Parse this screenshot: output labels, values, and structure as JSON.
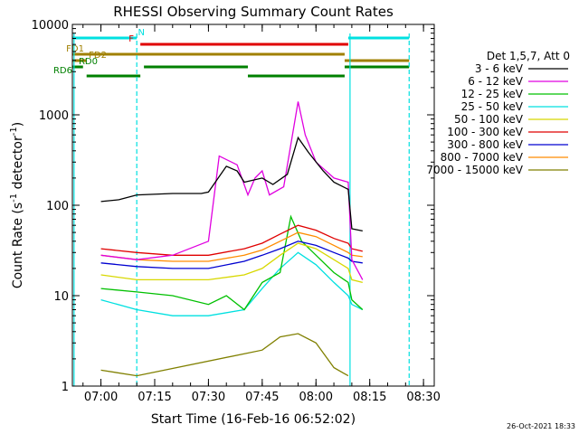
{
  "chart_data": {
    "type": "line",
    "title": "RHESSI Observing Summary Count Rates",
    "xlabel": "Start Time (16-Feb-16 06:52:02)",
    "ylabel_main": "Count Rate (s",
    "ylabel_sup1": "-1",
    "ylabel_mid": " detector",
    "ylabel_sup2": "-1",
    "ylabel_end": ")",
    "y_scale": "log",
    "ylim": [
      1,
      10000
    ],
    "xlim": [
      "06:52:02",
      "08:33:00"
    ],
    "x_ticks": [
      "07:00",
      "07:15",
      "07:30",
      "07:45",
      "08:00",
      "08:15",
      "08:30"
    ],
    "y_ticks": [
      {
        "value": 1,
        "label": "1"
      },
      {
        "value": 10,
        "label": "10"
      },
      {
        "value": 100,
        "label": "100"
      },
      {
        "value": 1000,
        "label": "1000"
      },
      {
        "value": 10000,
        "label": "10000"
      }
    ],
    "legend_placement": "right",
    "legend_title": "Det 1,5,7, Att 0",
    "footer_date": "26-Oct-2021 18:33",
    "series": [
      {
        "name": "3 - 6 keV",
        "color": "#000000",
        "points": [
          [
            "06:52",
            null
          ],
          [
            "06:58",
            null
          ],
          [
            "07:00",
            110
          ],
          [
            "07:05",
            115
          ],
          [
            "07:10",
            130
          ],
          [
            "07:20",
            135
          ],
          [
            "07:28",
            135
          ],
          [
            "07:30",
            140
          ],
          [
            "07:35",
            270
          ],
          [
            "07:38",
            240
          ],
          [
            "07:40",
            180
          ],
          [
            "07:45",
            200
          ],
          [
            "07:48",
            170
          ],
          [
            "07:52",
            220
          ],
          [
            "07:55",
            560
          ],
          [
            "07:58",
            380
          ],
          [
            "08:02",
            240
          ],
          [
            "08:05",
            180
          ],
          [
            "08:09",
            150
          ],
          [
            "08:10",
            55
          ],
          [
            "08:13",
            52
          ]
        ]
      },
      {
        "name": "6 - 12 keV",
        "color": "#e000e0",
        "points": [
          [
            "06:58",
            null
          ],
          [
            "07:00",
            28
          ],
          [
            "07:10",
            25
          ],
          [
            "07:20",
            28
          ],
          [
            "07:30",
            40
          ],
          [
            "07:33",
            350
          ],
          [
            "07:38",
            280
          ],
          [
            "07:41",
            130
          ],
          [
            "07:43",
            200
          ],
          [
            "07:45",
            240
          ],
          [
            "07:47",
            130
          ],
          [
            "07:51",
            160
          ],
          [
            "07:55",
            1400
          ],
          [
            "07:57",
            600
          ],
          [
            "08:00",
            300
          ],
          [
            "08:05",
            200
          ],
          [
            "08:09",
            180
          ],
          [
            "08:10",
            25
          ],
          [
            "08:13",
            15
          ]
        ]
      },
      {
        "name": "12 - 25 keV",
        "color": "#00c000",
        "points": [
          [
            "06:58",
            null
          ],
          [
            "07:00",
            12
          ],
          [
            "07:10",
            11
          ],
          [
            "07:20",
            10
          ],
          [
            "07:30",
            8
          ],
          [
            "07:35",
            10
          ],
          [
            "07:40",
            7
          ],
          [
            "07:45",
            14
          ],
          [
            "07:50",
            18
          ],
          [
            "07:53",
            75
          ],
          [
            "07:56",
            40
          ],
          [
            "08:00",
            28
          ],
          [
            "08:05",
            18
          ],
          [
            "08:09",
            14
          ],
          [
            "08:10",
            9
          ],
          [
            "08:13",
            7
          ]
        ]
      },
      {
        "name": "25 - 50 keV",
        "color": "#00e0e0",
        "points": [
          [
            "06:58",
            null
          ],
          [
            "07:00",
            9
          ],
          [
            "07:10",
            7
          ],
          [
            "07:20",
            6
          ],
          [
            "07:30",
            6
          ],
          [
            "07:40",
            7
          ],
          [
            "07:45",
            12
          ],
          [
            "07:50",
            20
          ],
          [
            "07:55",
            30
          ],
          [
            "08:00",
            22
          ],
          [
            "08:05",
            14
          ],
          [
            "08:09",
            10
          ],
          [
            "08:10",
            8
          ],
          [
            "08:13",
            7
          ]
        ]
      },
      {
        "name": "50 - 100 keV",
        "color": "#d8d800",
        "points": [
          [
            "06:58",
            null
          ],
          [
            "07:00",
            17
          ],
          [
            "07:10",
            15
          ],
          [
            "07:20",
            15
          ],
          [
            "07:30",
            15
          ],
          [
            "07:40",
            17
          ],
          [
            "07:45",
            20
          ],
          [
            "07:50",
            28
          ],
          [
            "07:55",
            38
          ],
          [
            "08:00",
            33
          ],
          [
            "08:05",
            25
          ],
          [
            "08:09",
            20
          ],
          [
            "08:10",
            15
          ],
          [
            "08:13",
            14
          ]
        ]
      },
      {
        "name": "100 - 300 keV",
        "color": "#e00000",
        "points": [
          [
            "06:58",
            null
          ],
          [
            "07:00",
            33
          ],
          [
            "07:10",
            30
          ],
          [
            "07:20",
            28
          ],
          [
            "07:30",
            28
          ],
          [
            "07:40",
            33
          ],
          [
            "07:45",
            38
          ],
          [
            "07:50",
            48
          ],
          [
            "07:55",
            60
          ],
          [
            "08:00",
            53
          ],
          [
            "08:05",
            43
          ],
          [
            "08:09",
            38
          ],
          [
            "08:10",
            33
          ],
          [
            "08:13",
            31
          ]
        ]
      },
      {
        "name": "300 - 800 keV",
        "color": "#0000d0",
        "points": [
          [
            "06:58",
            null
          ],
          [
            "07:00",
            23
          ],
          [
            "07:10",
            21
          ],
          [
            "07:20",
            20
          ],
          [
            "07:30",
            20
          ],
          [
            "07:40",
            24
          ],
          [
            "07:45",
            28
          ],
          [
            "07:50",
            33
          ],
          [
            "07:55",
            40
          ],
          [
            "08:00",
            36
          ],
          [
            "08:05",
            30
          ],
          [
            "08:09",
            26
          ],
          [
            "08:10",
            24
          ],
          [
            "08:13",
            23
          ]
        ]
      },
      {
        "name": "800 - 7000 keV",
        "color": "#ff8c00",
        "points": [
          [
            "06:58",
            null
          ],
          [
            "07:00",
            28
          ],
          [
            "07:10",
            25
          ],
          [
            "07:20",
            24
          ],
          [
            "07:30",
            24
          ],
          [
            "07:40",
            28
          ],
          [
            "07:45",
            32
          ],
          [
            "07:50",
            40
          ],
          [
            "07:55",
            50
          ],
          [
            "08:00",
            45
          ],
          [
            "08:05",
            36
          ],
          [
            "08:09",
            30
          ],
          [
            "08:10",
            28
          ],
          [
            "08:13",
            27
          ]
        ]
      },
      {
        "name": "7000 - 15000 keV",
        "color": "#808000",
        "points": [
          [
            "06:58",
            null
          ],
          [
            "07:00",
            1.5
          ],
          [
            "07:10",
            1.3
          ],
          [
            "07:45",
            2.5
          ],
          [
            "07:50",
            3.5
          ],
          [
            "07:55",
            3.8
          ],
          [
            "08:00",
            3
          ],
          [
            "08:05",
            1.6
          ],
          [
            "08:09",
            1.3
          ]
        ]
      }
    ],
    "markers": {
      "vertical_lines": [
        {
          "time": "06:52:30",
          "color": "#00e0e0",
          "style": "solid"
        },
        {
          "time": "07:10:00",
          "color": "#00e0e0",
          "style": "dashed"
        },
        {
          "time": "08:09:30",
          "color": "#00e0e0",
          "style": "solid"
        },
        {
          "time": "08:26:00",
          "color": "#00e0e0",
          "style": "dashed"
        }
      ],
      "flag_bars": [
        {
          "label": "N",
          "color": "#00e0e0",
          "segments": [
            [
              "06:52",
              "07:10"
            ],
            [
              "08:09",
              "08:26"
            ]
          ]
        },
        {
          "label": "F",
          "color": "#e00000",
          "segments": [
            [
              "07:11",
              "08:09"
            ]
          ]
        },
        {
          "label": "FD1",
          "color": "#a08000",
          "segments": [
            [
              "06:52",
              "08:08"
            ]
          ]
        },
        {
          "label": "FD2",
          "color": "#a08000",
          "segments": [
            [
              "06:52",
              "06:56"
            ],
            [
              "08:08",
              "08:26"
            ]
          ]
        },
        {
          "label": "RD0",
          "color": "#008000",
          "segments": [
            [
              "06:52",
              "06:55"
            ],
            [
              "07:12",
              "07:41"
            ],
            [
              "08:08",
              "08:26"
            ]
          ]
        },
        {
          "label": "RD6",
          "color": "#008000",
          "segments": [
            [
              "06:56",
              "07:11"
            ],
            [
              "07:41",
              "08:08"
            ]
          ]
        }
      ]
    }
  }
}
